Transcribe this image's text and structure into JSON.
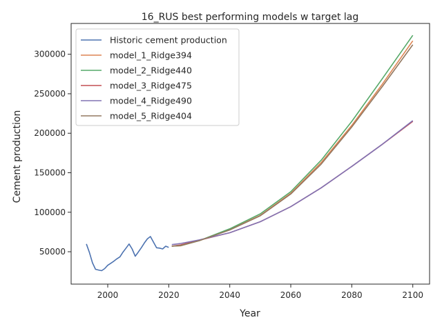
{
  "chart_data": {
    "type": "line",
    "title": "16_RUS best performing models w target lag",
    "xlabel": "Year",
    "ylabel": "Cement production",
    "xlim": [
      1988,
      2105.5
    ],
    "ylim": [
      9000,
      339000
    ],
    "xticks": [
      2000,
      2020,
      2040,
      2060,
      2080,
      2100
    ],
    "yticks": [
      50000,
      100000,
      150000,
      200000,
      250000,
      300000
    ],
    "xtick_labels": [
      "2000",
      "2020",
      "2040",
      "2060",
      "2080",
      "2100"
    ],
    "ytick_labels": [
      "50000",
      "100000",
      "150000",
      "200000",
      "250000",
      "300000"
    ],
    "grid": false,
    "legend_position": "upper-left",
    "series": [
      {
        "name": "Historic cement production",
        "color": "#4c72b0",
        "x": [
          1993,
          1994,
          1995,
          1996,
          1997,
          1998,
          1999,
          2000,
          2001,
          2002,
          2003,
          2004,
          2005,
          2006,
          2007,
          2008,
          2009,
          2010,
          2011,
          2012,
          2013,
          2014,
          2015,
          2016,
          2017,
          2018,
          2019,
          2020
        ],
        "y": [
          59800,
          49000,
          36000,
          27800,
          26800,
          26000,
          28600,
          32800,
          35400,
          38000,
          41000,
          43600,
          49500,
          54600,
          59800,
          53500,
          44300,
          49500,
          55000,
          61000,
          66300,
          69200,
          62000,
          55000,
          54600,
          53500,
          57000,
          55500
        ]
      },
      {
        "name": "model_1_Ridge394",
        "color": "#dd8452",
        "x": [
          2021,
          2024,
          2030,
          2040,
          2050,
          2060,
          2070,
          2080,
          2090,
          2100
        ],
        "y": [
          57000,
          57500,
          64000,
          78000,
          96000,
          124000,
          163000,
          210000,
          262000,
          317000
        ]
      },
      {
        "name": "model_2_Ridge440",
        "color": "#55a868",
        "x": [
          2021,
          2024,
          2030,
          2040,
          2050,
          2060,
          2070,
          2080,
          2090,
          2100
        ],
        "y": [
          57000,
          57800,
          64000,
          79000,
          98000,
          126000,
          166000,
          215000,
          269000,
          324000
        ]
      },
      {
        "name": "model_3_Ridge475",
        "color": "#c44e52",
        "x": [
          2021,
          2024,
          2030,
          2040,
          2050,
          2060,
          2070,
          2080,
          2090,
          2100
        ],
        "y": [
          57000,
          58800,
          64500,
          74000,
          88000,
          107000,
          131000,
          158000,
          186000,
          215000
        ]
      },
      {
        "name": "model_4_Ridge490",
        "color": "#8172b3",
        "x": [
          2021,
          2024,
          2030,
          2040,
          2050,
          2060,
          2070,
          2080,
          2090,
          2100
        ],
        "y": [
          59000,
          60500,
          65000,
          74000,
          88000,
          107000,
          131000,
          158000,
          186000,
          216000
        ]
      },
      {
        "name": "model_5_Ridge404",
        "color": "#937860",
        "x": [
          2021,
          2024,
          2030,
          2040,
          2050,
          2060,
          2070,
          2080,
          2090,
          2100
        ],
        "y": [
          57000,
          58000,
          64000,
          77500,
          95500,
          123000,
          161000,
          208000,
          259000,
          312000
        ]
      }
    ]
  }
}
